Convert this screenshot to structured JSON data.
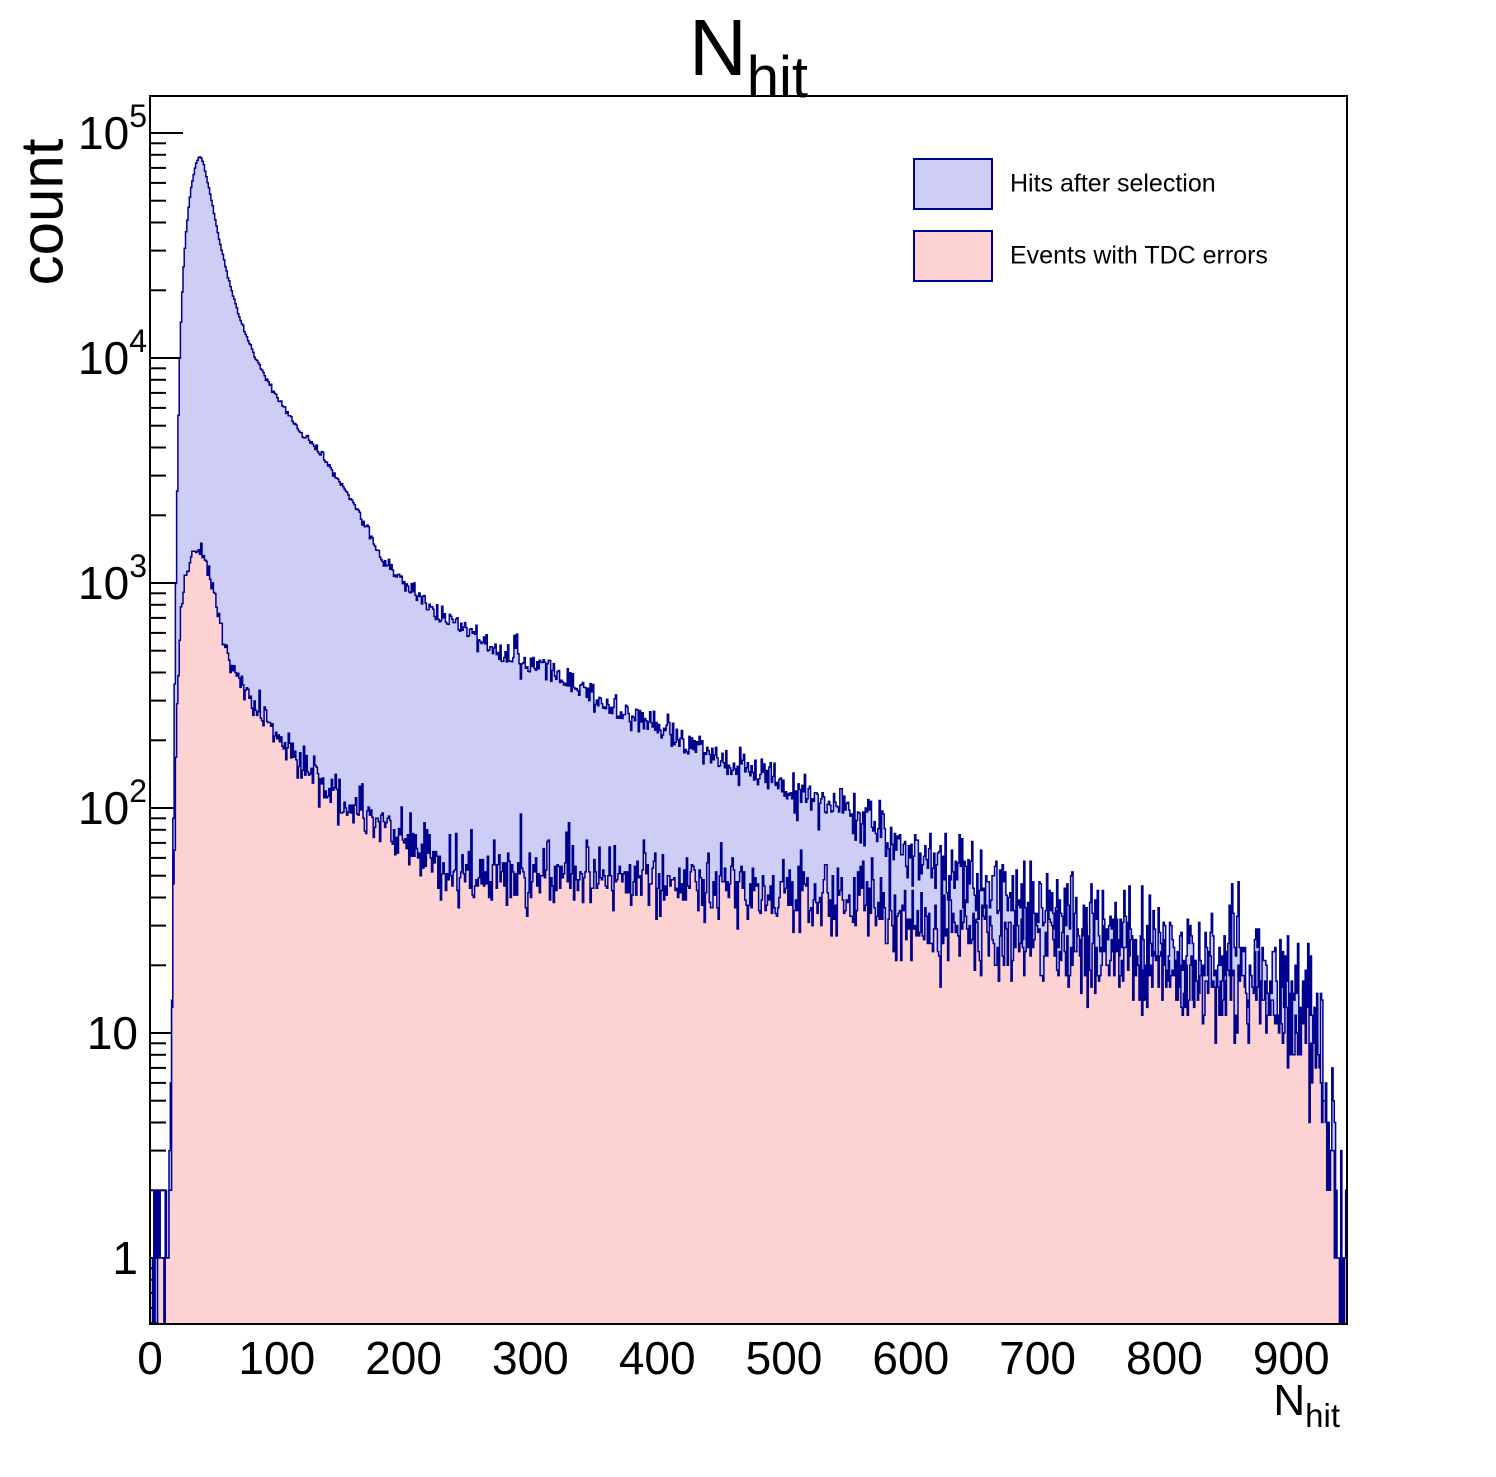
{
  "page": {
    "background": "#ffffff",
    "frame_color": "#000000",
    "text_color": "#000000"
  },
  "title": {
    "main": "N",
    "sub": "hit"
  },
  "axes": {
    "x": {
      "title_main": "N",
      "title_sub": "hit",
      "min": 0,
      "max": 944,
      "tick_values": [
        0,
        100,
        200,
        300,
        400,
        500,
        600,
        700,
        800,
        900
      ],
      "tick_labels": [
        "0",
        "100",
        "200",
        "300",
        "400",
        "500",
        "600",
        "700",
        "800",
        "900"
      ]
    },
    "y": {
      "title": "count",
      "scale": "log",
      "min": 0.5,
      "max": 146000,
      "major_ticks": [
        {
          "value": 1,
          "base": "1",
          "exp": null
        },
        {
          "value": 10,
          "base": "10",
          "exp": null
        },
        {
          "value": 100,
          "base": "10",
          "exp": "2"
        },
        {
          "value": 1000,
          "base": "10",
          "exp": "3"
        },
        {
          "value": 10000,
          "base": "10",
          "exp": "4"
        },
        {
          "value": 100000,
          "base": "10",
          "exp": "5"
        }
      ]
    }
  },
  "legend": {
    "items": [
      {
        "label": "Hits after selection"
      },
      {
        "label": "Events with TDC errors"
      }
    ]
  },
  "chart_data": {
    "type": "histogram-step-filled",
    "title": "N_hit",
    "xlabel": "N_hit",
    "ylabel": "count",
    "y_scale": "log",
    "x_range": [
      0,
      944
    ],
    "y_range": [
      0.5,
      146000
    ],
    "bin_width": 1,
    "grid": false,
    "legend_position": "top-right",
    "noise": {
      "seed": 42,
      "rel_amp": 1.3
    },
    "series": [
      {
        "name": "Hits after selection",
        "fill": "#cdcdf5",
        "line": "#00008f",
        "keypoints": [
          [
            2,
            0.8
          ],
          [
            5,
            0.7
          ],
          [
            8,
            1.2
          ],
          [
            11,
            0.8
          ],
          [
            13,
            1.5
          ],
          [
            15,
            3
          ],
          [
            16,
            8
          ],
          [
            17,
            25
          ],
          [
            18,
            90
          ],
          [
            19,
            350
          ],
          [
            20,
            1000
          ],
          [
            21,
            2600
          ],
          [
            22,
            5600
          ],
          [
            23,
            9800
          ],
          [
            24,
            14500
          ],
          [
            25,
            19500
          ],
          [
            26,
            25000
          ],
          [
            27,
            30500
          ],
          [
            28,
            36000
          ],
          [
            29,
            41500
          ],
          [
            30,
            47000
          ],
          [
            32,
            57000
          ],
          [
            34,
            66000
          ],
          [
            36,
            73500
          ],
          [
            38,
            78000
          ],
          [
            39,
            78500
          ],
          [
            40,
            77500
          ],
          [
            42,
            72000
          ],
          [
            44,
            64000
          ],
          [
            46,
            57000
          ],
          [
            48,
            50000
          ],
          [
            50,
            44000
          ],
          [
            52,
            38500
          ],
          [
            55,
            32000
          ],
          [
            58,
            27000
          ],
          [
            61,
            23000
          ],
          [
            65,
            19000
          ],
          [
            69,
            16000
          ],
          [
            73,
            13800
          ],
          [
            77,
            12000
          ],
          [
            81,
            10700
          ],
          [
            85,
            9500
          ],
          [
            90,
            8300
          ],
          [
            95,
            7400
          ],
          [
            100,
            6700
          ],
          [
            107,
            5800
          ],
          [
            114,
            5100
          ],
          [
            121,
            4550
          ],
          [
            128,
            4100
          ],
          [
            136,
            3650
          ],
          [
            144,
            3100
          ],
          [
            152,
            2700
          ],
          [
            160,
            2300
          ],
          [
            170,
            1800
          ],
          [
            181,
            1300
          ],
          [
            190,
            1130
          ],
          [
            197,
            1050
          ],
          [
            210,
            880
          ],
          [
            225,
            745
          ],
          [
            244,
            650
          ],
          [
            260,
            560
          ],
          [
            280,
            480
          ],
          [
            300,
            430
          ],
          [
            315,
            407
          ],
          [
            335,
            350
          ],
          [
            355,
            300
          ],
          [
            375,
            260
          ],
          [
            397,
            226
          ],
          [
            420,
            200
          ],
          [
            440,
            180
          ],
          [
            460,
            156
          ],
          [
            480,
            140
          ],
          [
            500,
            127
          ],
          [
            512,
            119
          ],
          [
            530,
            106
          ],
          [
            550,
            95
          ],
          [
            573,
            84
          ],
          [
            590,
            72
          ],
          [
            610,
            60
          ],
          [
            631,
            50
          ],
          [
            650,
            46
          ],
          [
            670,
            42
          ],
          [
            690,
            38
          ],
          [
            710,
            34
          ],
          [
            730,
            31
          ],
          [
            750,
            29
          ],
          [
            770,
            27
          ],
          [
            790,
            25
          ],
          [
            810,
            24
          ],
          [
            830,
            22
          ],
          [
            850,
            21
          ],
          [
            870,
            20
          ],
          [
            885,
            18
          ],
          [
            895,
            17
          ],
          [
            905,
            15
          ],
          [
            915,
            13
          ],
          [
            922,
            10
          ],
          [
            928,
            6
          ],
          [
            933,
            3
          ],
          [
            938,
            1.5
          ],
          [
            944,
            1
          ]
        ]
      },
      {
        "name": "Events with TDC errors",
        "fill": "#fcd2d2",
        "line": "#00008f",
        "keypoints": [
          [
            3,
            0.7
          ],
          [
            8,
            0.9
          ],
          [
            12,
            1.2
          ],
          [
            14,
            2
          ],
          [
            15,
            2.5
          ],
          [
            16,
            5
          ],
          [
            17,
            12
          ],
          [
            18,
            30
          ],
          [
            19,
            70
          ],
          [
            20,
            140
          ],
          [
            21,
            260
          ],
          [
            22,
            420
          ],
          [
            23,
            600
          ],
          [
            25,
            850
          ],
          [
            27,
            1050
          ],
          [
            30,
            1230
          ],
          [
            33,
            1340
          ],
          [
            36,
            1410
          ],
          [
            38,
            1430
          ],
          [
            40,
            1410
          ],
          [
            42,
            1340
          ],
          [
            45,
            1180
          ],
          [
            48,
            1000
          ],
          [
            50,
            880
          ],
          [
            53,
            720
          ],
          [
            56,
            590
          ],
          [
            60,
            480
          ],
          [
            64,
            420
          ],
          [
            68,
            380
          ],
          [
            72,
            350
          ],
          [
            76,
            320
          ],
          [
            81,
            290
          ],
          [
            86,
            265
          ],
          [
            92,
            240
          ],
          [
            98,
            215
          ],
          [
            105,
            195
          ],
          [
            112,
            175
          ],
          [
            120,
            155
          ],
          [
            128,
            138
          ],
          [
            136,
            122
          ],
          [
            144,
            110
          ],
          [
            152,
            103
          ],
          [
            163,
            96
          ],
          [
            174,
            90
          ],
          [
            184,
            85
          ],
          [
            199,
            72
          ],
          [
            215,
            62
          ],
          [
            230,
            56
          ],
          [
            245,
            53
          ],
          [
            260,
            51
          ],
          [
            280,
            50
          ],
          [
            300,
            49
          ],
          [
            320,
            48
          ],
          [
            340,
            50
          ],
          [
            360,
            51
          ],
          [
            380,
            50
          ],
          [
            400,
            49
          ],
          [
            420,
            48
          ],
          [
            440,
            46
          ],
          [
            460,
            45
          ],
          [
            480,
            44
          ],
          [
            500,
            42
          ],
          [
            520,
            40
          ],
          [
            540,
            39
          ],
          [
            560,
            38
          ],
          [
            580,
            36
          ],
          [
            600,
            34
          ],
          [
            620,
            31
          ],
          [
            631,
            30
          ],
          [
            650,
            28
          ],
          [
            670,
            26
          ],
          [
            690,
            25
          ],
          [
            710,
            24
          ],
          [
            730,
            23
          ],
          [
            750,
            22
          ],
          [
            770,
            21
          ],
          [
            790,
            20
          ],
          [
            810,
            19
          ],
          [
            830,
            18
          ],
          [
            850,
            17
          ],
          [
            870,
            16
          ],
          [
            885,
            14
          ],
          [
            900,
            12
          ],
          [
            910,
            11
          ],
          [
            918,
            10
          ],
          [
            925,
            8
          ],
          [
            930,
            5
          ],
          [
            934,
            2
          ],
          [
            938,
            1
          ],
          [
            944,
            1
          ]
        ]
      }
    ]
  }
}
